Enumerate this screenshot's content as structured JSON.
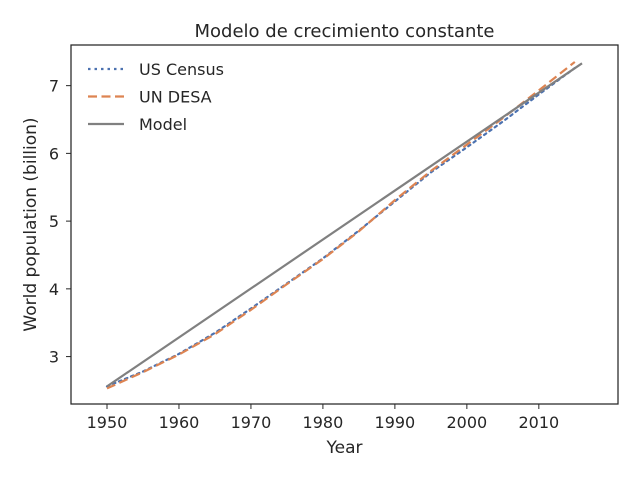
{
  "chart_data": {
    "type": "line",
    "title": "Modelo de crecimiento constante",
    "xlabel": "Year",
    "ylabel": "World population (billion)",
    "xlim": [
      1945,
      2021
    ],
    "ylim": [
      2.3,
      7.6
    ],
    "xticks": [
      1950,
      1960,
      1970,
      1980,
      1990,
      2000,
      2010
    ],
    "yticks": [
      3,
      4,
      5,
      6,
      7
    ],
    "grid": false,
    "legend_position": "top-left",
    "series": [
      {
        "name": "US Census",
        "style": "dotted",
        "color": "#4c72b0",
        "x": [
          1950,
          1955,
          1960,
          1965,
          1970,
          1975,
          1980,
          1985,
          1990,
          1995,
          2000,
          2005,
          2010,
          2015
        ],
        "y": [
          2.56,
          2.78,
          3.04,
          3.35,
          3.71,
          4.08,
          4.45,
          4.86,
          5.29,
          5.72,
          6.09,
          6.47,
          6.87,
          7.26
        ]
      },
      {
        "name": "UN DESA",
        "style": "dashed",
        "color": "#dd8452",
        "x": [
          1950,
          1955,
          1960,
          1965,
          1970,
          1975,
          1980,
          1985,
          1990,
          1995,
          2000,
          2005,
          2010,
          2015
        ],
        "y": [
          2.53,
          2.77,
          3.03,
          3.33,
          3.69,
          4.07,
          4.44,
          4.85,
          5.31,
          5.74,
          6.13,
          6.52,
          6.93,
          7.35
        ]
      },
      {
        "name": "Model",
        "style": "solid",
        "color": "#808080",
        "x": [
          1950,
          2016
        ],
        "y": [
          2.56,
          7.33
        ]
      }
    ]
  }
}
